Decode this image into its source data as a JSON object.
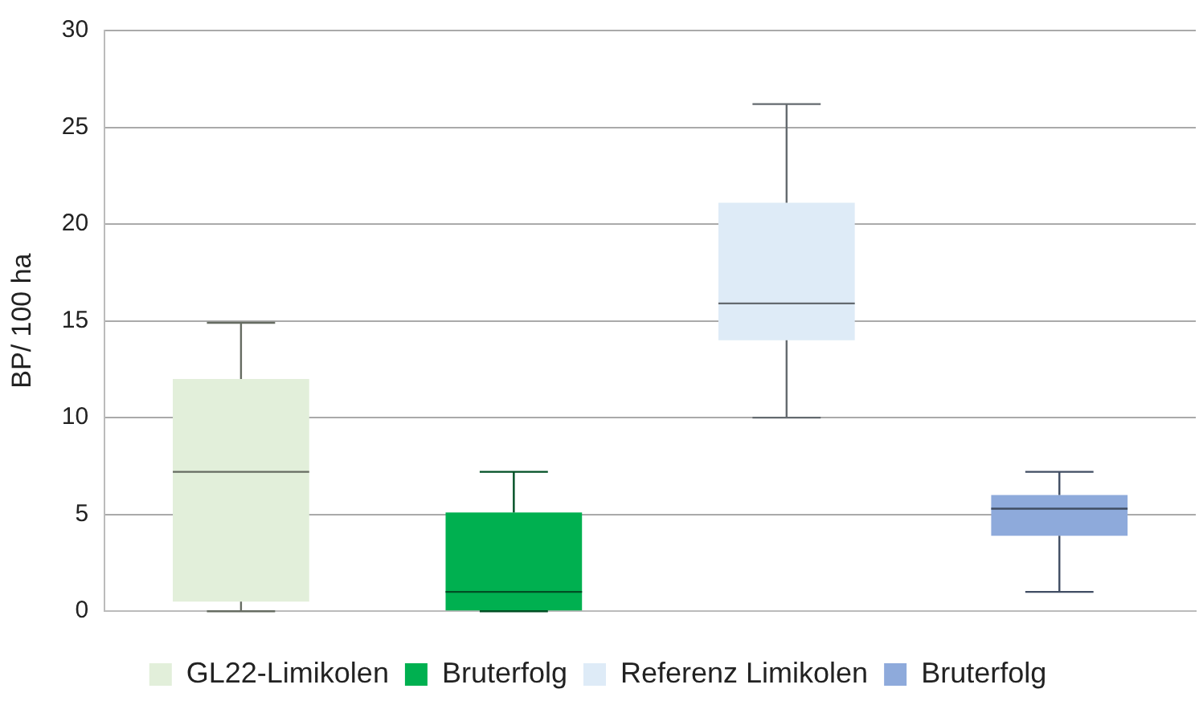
{
  "chart_data": {
    "type": "box",
    "ylabel": "BP/ 100 ha",
    "categories": [
      null,
      null,
      null,
      null
    ],
    "ylim": [
      0,
      30
    ],
    "yticks": [
      0,
      5,
      10,
      15,
      20,
      25,
      30
    ],
    "grid": "y",
    "legend": "bottom",
    "series": [
      {
        "name": "GL22-Limikolen",
        "color": "#e2efda",
        "boxes": [
          {
            "low": 0,
            "q1": 0.5,
            "median": 7.2,
            "q3": 12,
            "high": 14.9
          },
          null,
          null,
          null
        ]
      },
      {
        "name": "Bruterfolg",
        "color": "#00b050",
        "boxes": [
          null,
          {
            "low": 0,
            "q1": 0,
            "median": 1,
            "q3": 5.1,
            "high": 7.2
          },
          null,
          null
        ]
      },
      {
        "name": "Referenz Limikolen",
        "color": "#deebf7",
        "boxes": [
          null,
          null,
          {
            "low": 10,
            "q1": 14,
            "median": 15.9,
            "q3": 21.1,
            "high": 26.2
          },
          null
        ]
      },
      {
        "name": "Bruterfolg",
        "color": "#8eaadb",
        "boxes": [
          null,
          null,
          null,
          {
            "low": 1,
            "q1": 3.9,
            "median": 5.3,
            "q3": 6,
            "high": 7.2
          }
        ]
      }
    ]
  }
}
